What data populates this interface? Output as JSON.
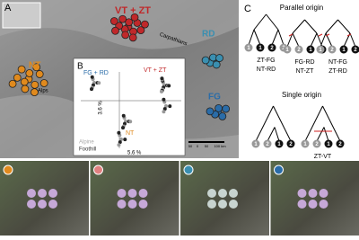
{
  "panel_a": {
    "label": "A",
    "regions": [
      "NT",
      "VT + ZT",
      "RD",
      "FG"
    ],
    "places": [
      "Alps",
      "Carpathians"
    ],
    "scale": [
      "50",
      "0",
      "50",
      "100 km"
    ]
  },
  "panel_b": {
    "label": "B",
    "groups": [
      "FG + RD",
      "VT + ZT",
      "NT"
    ],
    "axis_y": "3.6 %",
    "axis_x": "5.6 %",
    "legend": [
      "Alpine",
      "Foothill"
    ]
  },
  "panel_c": {
    "label": "C",
    "parallel": {
      "title": "Parallel origin",
      "trees": [
        {
          "leaves": [
            "1",
            "1",
            "2",
            "2"
          ],
          "labels": [
            "ZT-FG",
            "NT-RD"
          ]
        },
        {
          "leaves": [
            "1",
            "2",
            "1",
            "2"
          ],
          "labels": [
            "FG-RD",
            "NT-ZT"
          ]
        },
        {
          "leaves": [
            "1",
            "2",
            "1",
            "2"
          ],
          "labels": [
            "NT-FG",
            "ZT-RD"
          ]
        }
      ]
    },
    "single": {
      "title": "Single origin",
      "trees": [
        {
          "leaves": [
            "1",
            "2",
            "1",
            "2"
          ],
          "labels": []
        },
        {
          "leaves": [
            "1",
            "2",
            "1",
            "2"
          ],
          "labels": [
            "ZT-VT"
          ]
        }
      ]
    }
  }
}
